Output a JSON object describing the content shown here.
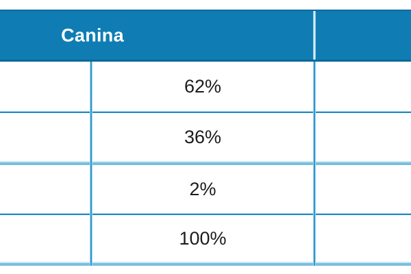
{
  "table": {
    "header": {
      "label": "Canina",
      "right_cell_label": ""
    },
    "values": [
      "62%",
      "36%",
      "2%",
      "100%"
    ],
    "colors": {
      "header_bg": "#0f7db4",
      "header_border_dark": "#0b6a99",
      "grid_blue": "#1f8abf",
      "grid_light_blue": "#8cc6e2",
      "header_text": "#ffffff",
      "cell_text": "#1c1c1c",
      "page_bg": "#ffffff"
    }
  },
  "chart_data": {
    "type": "table",
    "title": "Canina",
    "columns": [
      "",
      "Canina",
      ""
    ],
    "rows": [
      [
        "",
        "62%",
        ""
      ],
      [
        "",
        "36%",
        ""
      ],
      [
        "",
        "2%",
        ""
      ],
      [
        "",
        "100%",
        ""
      ]
    ],
    "values_percent": [
      62,
      36,
      2,
      100
    ],
    "layout": {
      "grid": true,
      "header_fill_blue": true,
      "left_and_right_columns_empty_cropped": true
    }
  }
}
